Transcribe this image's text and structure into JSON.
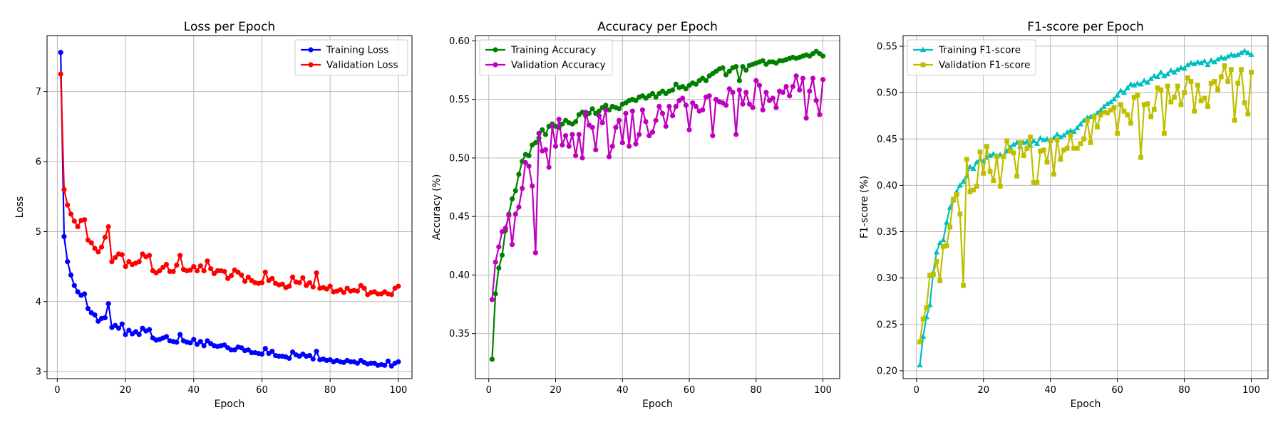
{
  "chart_data": [
    {
      "type": "line",
      "title": "Loss per Epoch",
      "xlabel": "Epoch",
      "ylabel": "Loss",
      "xlim": [
        -3,
        104
      ],
      "ylim": [
        2.9,
        7.8
      ],
      "xticks": [
        0,
        20,
        40,
        60,
        80,
        100
      ],
      "yticks": [
        3,
        4,
        5,
        6,
        7
      ],
      "tick_decimals": 0,
      "grid": true,
      "legend": "top-right",
      "x": [
        1,
        2,
        3,
        4,
        5,
        6,
        7,
        8,
        9,
        10,
        11,
        12,
        13,
        14,
        15,
        16,
        17,
        18,
        19,
        20,
        21,
        22,
        23,
        24,
        25,
        26,
        27,
        28,
        29,
        30,
        31,
        32,
        33,
        34,
        35,
        36,
        37,
        38,
        39,
        40,
        41,
        42,
        43,
        44,
        45,
        46,
        47,
        48,
        49,
        50,
        51,
        52,
        53,
        54,
        55,
        56,
        57,
        58,
        59,
        60,
        61,
        62,
        63,
        64,
        65,
        66,
        67,
        68,
        69,
        70,
        71,
        72,
        73,
        74,
        75,
        76,
        77,
        78,
        79,
        80,
        81,
        82,
        83,
        84,
        85,
        86,
        87,
        88,
        89,
        90,
        91,
        92,
        93,
        94,
        95,
        96,
        97,
        98,
        99,
        100
      ],
      "series": [
        {
          "name": "Training Loss",
          "color": "#0000ff",
          "marker": "circle",
          "values": [
            7.56,
            4.93,
            4.57,
            4.38,
            4.23,
            4.14,
            4.09,
            4.11,
            3.9,
            3.84,
            3.81,
            3.72,
            3.76,
            3.77,
            3.97,
            3.63,
            3.66,
            3.62,
            3.68,
            3.53,
            3.59,
            3.54,
            3.57,
            3.53,
            3.62,
            3.58,
            3.6,
            3.48,
            3.45,
            3.46,
            3.48,
            3.5,
            3.44,
            3.43,
            3.42,
            3.53,
            3.44,
            3.42,
            3.41,
            3.46,
            3.39,
            3.43,
            3.37,
            3.44,
            3.4,
            3.37,
            3.36,
            3.37,
            3.38,
            3.34,
            3.31,
            3.31,
            3.35,
            3.34,
            3.3,
            3.31,
            3.27,
            3.27,
            3.26,
            3.25,
            3.33,
            3.26,
            3.29,
            3.23,
            3.22,
            3.22,
            3.21,
            3.19,
            3.28,
            3.24,
            3.22,
            3.25,
            3.22,
            3.23,
            3.18,
            3.29,
            3.17,
            3.18,
            3.16,
            3.17,
            3.14,
            3.16,
            3.14,
            3.13,
            3.16,
            3.14,
            3.14,
            3.12,
            3.16,
            3.13,
            3.11,
            3.12,
            3.12,
            3.09,
            3.1,
            3.09,
            3.15,
            3.08,
            3.12,
            3.14
          ]
        },
        {
          "name": "Validation Loss",
          "color": "#ff0000",
          "marker": "circle",
          "values": [
            7.25,
            5.6,
            5.38,
            5.25,
            5.15,
            5.07,
            5.16,
            5.17,
            4.88,
            4.84,
            4.76,
            4.71,
            4.78,
            4.92,
            5.07,
            4.57,
            4.63,
            4.68,
            4.67,
            4.5,
            4.57,
            4.53,
            4.55,
            4.57,
            4.68,
            4.64,
            4.66,
            4.44,
            4.41,
            4.44,
            4.49,
            4.53,
            4.43,
            4.43,
            4.52,
            4.66,
            4.46,
            4.44,
            4.45,
            4.5,
            4.44,
            4.51,
            4.44,
            4.58,
            4.47,
            4.4,
            4.44,
            4.44,
            4.43,
            4.33,
            4.37,
            4.45,
            4.42,
            4.38,
            4.29,
            4.35,
            4.3,
            4.27,
            4.26,
            4.27,
            4.42,
            4.3,
            4.33,
            4.26,
            4.24,
            4.25,
            4.2,
            4.22,
            4.35,
            4.28,
            4.27,
            4.34,
            4.23,
            4.27,
            4.21,
            4.41,
            4.19,
            4.2,
            4.18,
            4.22,
            4.14,
            4.15,
            4.17,
            4.13,
            4.19,
            4.15,
            4.16,
            4.15,
            4.23,
            4.19,
            4.1,
            4.13,
            4.14,
            4.11,
            4.11,
            4.14,
            4.11,
            4.1,
            4.19,
            4.22
          ]
        }
      ]
    },
    {
      "type": "line",
      "title": "Accuracy per Epoch",
      "xlabel": "Epoch",
      "ylabel": "Accuracy (%)",
      "xlim": [
        -4,
        105
      ],
      "ylim": [
        0.3115,
        0.6045
      ],
      "xticks": [
        0,
        20,
        40,
        60,
        80,
        100
      ],
      "yticks": [
        0.35,
        0.4,
        0.45,
        0.5,
        0.55,
        0.6
      ],
      "tick_decimals": 2,
      "grid": true,
      "legend": "top-left",
      "x": [
        1,
        2,
        3,
        4,
        5,
        6,
        7,
        8,
        9,
        10,
        11,
        12,
        13,
        14,
        15,
        16,
        17,
        18,
        19,
        20,
        21,
        22,
        23,
        24,
        25,
        26,
        27,
        28,
        29,
        30,
        31,
        32,
        33,
        34,
        35,
        36,
        37,
        38,
        39,
        40,
        41,
        42,
        43,
        44,
        45,
        46,
        47,
        48,
        49,
        50,
        51,
        52,
        53,
        54,
        55,
        56,
        57,
        58,
        59,
        60,
        61,
        62,
        63,
        64,
        65,
        66,
        67,
        68,
        69,
        70,
        71,
        72,
        73,
        74,
        75,
        76,
        77,
        78,
        79,
        80,
        81,
        82,
        83,
        84,
        85,
        86,
        87,
        88,
        89,
        90,
        91,
        92,
        93,
        94,
        95,
        96,
        97,
        98,
        99,
        100
      ],
      "series": [
        {
          "name": "Training Accuracy",
          "color": "#008000",
          "marker": "circle",
          "values": [
            0.328,
            0.384,
            0.406,
            0.417,
            0.438,
            0.452,
            0.465,
            0.472,
            0.486,
            0.497,
            0.503,
            0.502,
            0.511,
            0.513,
            0.517,
            0.524,
            0.52,
            0.527,
            0.529,
            0.527,
            0.526,
            0.529,
            0.532,
            0.53,
            0.529,
            0.531,
            0.537,
            0.539,
            0.536,
            0.538,
            0.542,
            0.538,
            0.54,
            0.543,
            0.545,
            0.541,
            0.544,
            0.543,
            0.542,
            0.546,
            0.547,
            0.549,
            0.55,
            0.549,
            0.552,
            0.553,
            0.551,
            0.553,
            0.555,
            0.552,
            0.555,
            0.557,
            0.555,
            0.557,
            0.558,
            0.563,
            0.56,
            0.561,
            0.559,
            0.562,
            0.564,
            0.563,
            0.566,
            0.568,
            0.566,
            0.57,
            0.572,
            0.574,
            0.576,
            0.577,
            0.571,
            0.574,
            0.577,
            0.578,
            0.566,
            0.578,
            0.575,
            0.579,
            0.58,
            0.581,
            0.582,
            0.583,
            0.58,
            0.582,
            0.582,
            0.581,
            0.583,
            0.583,
            0.584,
            0.585,
            0.586,
            0.585,
            0.586,
            0.587,
            0.588,
            0.587,
            0.589,
            0.591,
            0.589,
            0.587
          ]
        },
        {
          "name": "Validation Accuracy",
          "color": "#bf00bf",
          "marker": "circle",
          "values": [
            0.379,
            0.411,
            0.424,
            0.437,
            0.44,
            0.451,
            0.426,
            0.452,
            0.458,
            0.474,
            0.496,
            0.493,
            0.476,
            0.419,
            0.521,
            0.506,
            0.507,
            0.492,
            0.527,
            0.51,
            0.533,
            0.511,
            0.519,
            0.51,
            0.52,
            0.502,
            0.52,
            0.5,
            0.539,
            0.528,
            0.526,
            0.507,
            0.536,
            0.53,
            0.541,
            0.501,
            0.51,
            0.526,
            0.532,
            0.513,
            0.538,
            0.51,
            0.54,
            0.512,
            0.52,
            0.541,
            0.531,
            0.519,
            0.522,
            0.532,
            0.544,
            0.538,
            0.527,
            0.544,
            0.536,
            0.544,
            0.549,
            0.551,
            0.545,
            0.524,
            0.547,
            0.544,
            0.54,
            0.541,
            0.552,
            0.553,
            0.519,
            0.55,
            0.548,
            0.547,
            0.545,
            0.559,
            0.556,
            0.52,
            0.558,
            0.546,
            0.556,
            0.546,
            0.543,
            0.566,
            0.562,
            0.541,
            0.556,
            0.549,
            0.551,
            0.543,
            0.557,
            0.556,
            0.561,
            0.553,
            0.561,
            0.57,
            0.558,
            0.568,
            0.534,
            0.557,
            0.568,
            0.549,
            0.537,
            0.567
          ]
        }
      ]
    },
    {
      "type": "line",
      "title": "F1-score per Epoch",
      "xlabel": "Epoch",
      "ylabel": "F1-score (%)",
      "xlim": [
        -4,
        105
      ],
      "ylim": [
        0.1915,
        0.5615
      ],
      "xticks": [
        0,
        20,
        40,
        60,
        80,
        100
      ],
      "yticks": [
        0.2,
        0.25,
        0.3,
        0.35,
        0.4,
        0.45,
        0.5,
        0.55
      ],
      "tick_decimals": 2,
      "grid": true,
      "legend": "top-left",
      "x": [
        1,
        2,
        3,
        4,
        5,
        6,
        7,
        8,
        9,
        10,
        11,
        12,
        13,
        14,
        15,
        16,
        17,
        18,
        19,
        20,
        21,
        22,
        23,
        24,
        25,
        26,
        27,
        28,
        29,
        30,
        31,
        32,
        33,
        34,
        35,
        36,
        37,
        38,
        39,
        40,
        41,
        42,
        43,
        44,
        45,
        46,
        47,
        48,
        49,
        50,
        51,
        52,
        53,
        54,
        55,
        56,
        57,
        58,
        59,
        60,
        61,
        62,
        63,
        64,
        65,
        66,
        67,
        68,
        69,
        70,
        71,
        72,
        73,
        74,
        75,
        76,
        77,
        78,
        79,
        80,
        81,
        82,
        83,
        84,
        85,
        86,
        87,
        88,
        89,
        90,
        91,
        92,
        93,
        94,
        95,
        96,
        97,
        98,
        99,
        100
      ],
      "series": [
        {
          "name": "Training F1-score",
          "color": "#00bfbf",
          "marker": "triangle",
          "values": [
            0.206,
            0.237,
            0.258,
            0.271,
            0.306,
            0.328,
            0.338,
            0.341,
            0.36,
            0.376,
            0.384,
            0.393,
            0.4,
            0.404,
            0.41,
            0.42,
            0.418,
            0.425,
            0.428,
            0.426,
            0.43,
            0.432,
            0.434,
            0.432,
            0.433,
            0.431,
            0.437,
            0.441,
            0.444,
            0.446,
            0.442,
            0.446,
            0.447,
            0.443,
            0.448,
            0.445,
            0.451,
            0.449,
            0.45,
            0.449,
            0.451,
            0.455,
            0.452,
            0.454,
            0.457,
            0.459,
            0.458,
            0.462,
            0.466,
            0.47,
            0.473,
            0.474,
            0.475,
            0.478,
            0.481,
            0.485,
            0.488,
            0.49,
            0.493,
            0.497,
            0.502,
            0.5,
            0.505,
            0.509,
            0.508,
            0.51,
            0.509,
            0.513,
            0.511,
            0.515,
            0.518,
            0.517,
            0.522,
            0.518,
            0.52,
            0.524,
            0.522,
            0.525,
            0.527,
            0.526,
            0.53,
            0.532,
            0.531,
            0.533,
            0.532,
            0.534,
            0.53,
            0.535,
            0.533,
            0.536,
            0.538,
            0.537,
            0.539,
            0.541,
            0.54,
            0.541,
            0.543,
            0.545,
            0.543,
            0.541
          ]
        },
        {
          "name": "Validation F1-score",
          "color": "#bfbf00",
          "marker": "square",
          "values": [
            0.231,
            0.256,
            0.268,
            0.303,
            0.304,
            0.318,
            0.297,
            0.334,
            0.335,
            0.355,
            0.385,
            0.39,
            0.369,
            0.292,
            0.428,
            0.393,
            0.395,
            0.399,
            0.436,
            0.413,
            0.442,
            0.415,
            0.405,
            0.431,
            0.399,
            0.431,
            0.448,
            0.437,
            0.435,
            0.41,
            0.446,
            0.432,
            0.44,
            0.452,
            0.403,
            0.403,
            0.437,
            0.438,
            0.425,
            0.448,
            0.412,
            0.449,
            0.428,
            0.438,
            0.44,
            0.454,
            0.44,
            0.44,
            0.445,
            0.45,
            0.47,
            0.446,
            0.474,
            0.463,
            0.476,
            0.479,
            0.478,
            0.481,
            0.484,
            0.456,
            0.487,
            0.48,
            0.476,
            0.467,
            0.495,
            0.497,
            0.43,
            0.487,
            0.488,
            0.474,
            0.482,
            0.505,
            0.503,
            0.456,
            0.507,
            0.49,
            0.495,
            0.507,
            0.487,
            0.5,
            0.516,
            0.512,
            0.48,
            0.508,
            0.491,
            0.494,
            0.485,
            0.51,
            0.512,
            0.503,
            0.517,
            0.529,
            0.512,
            0.525,
            0.47,
            0.51,
            0.525,
            0.489,
            0.477,
            0.522
          ]
        }
      ]
    }
  ]
}
